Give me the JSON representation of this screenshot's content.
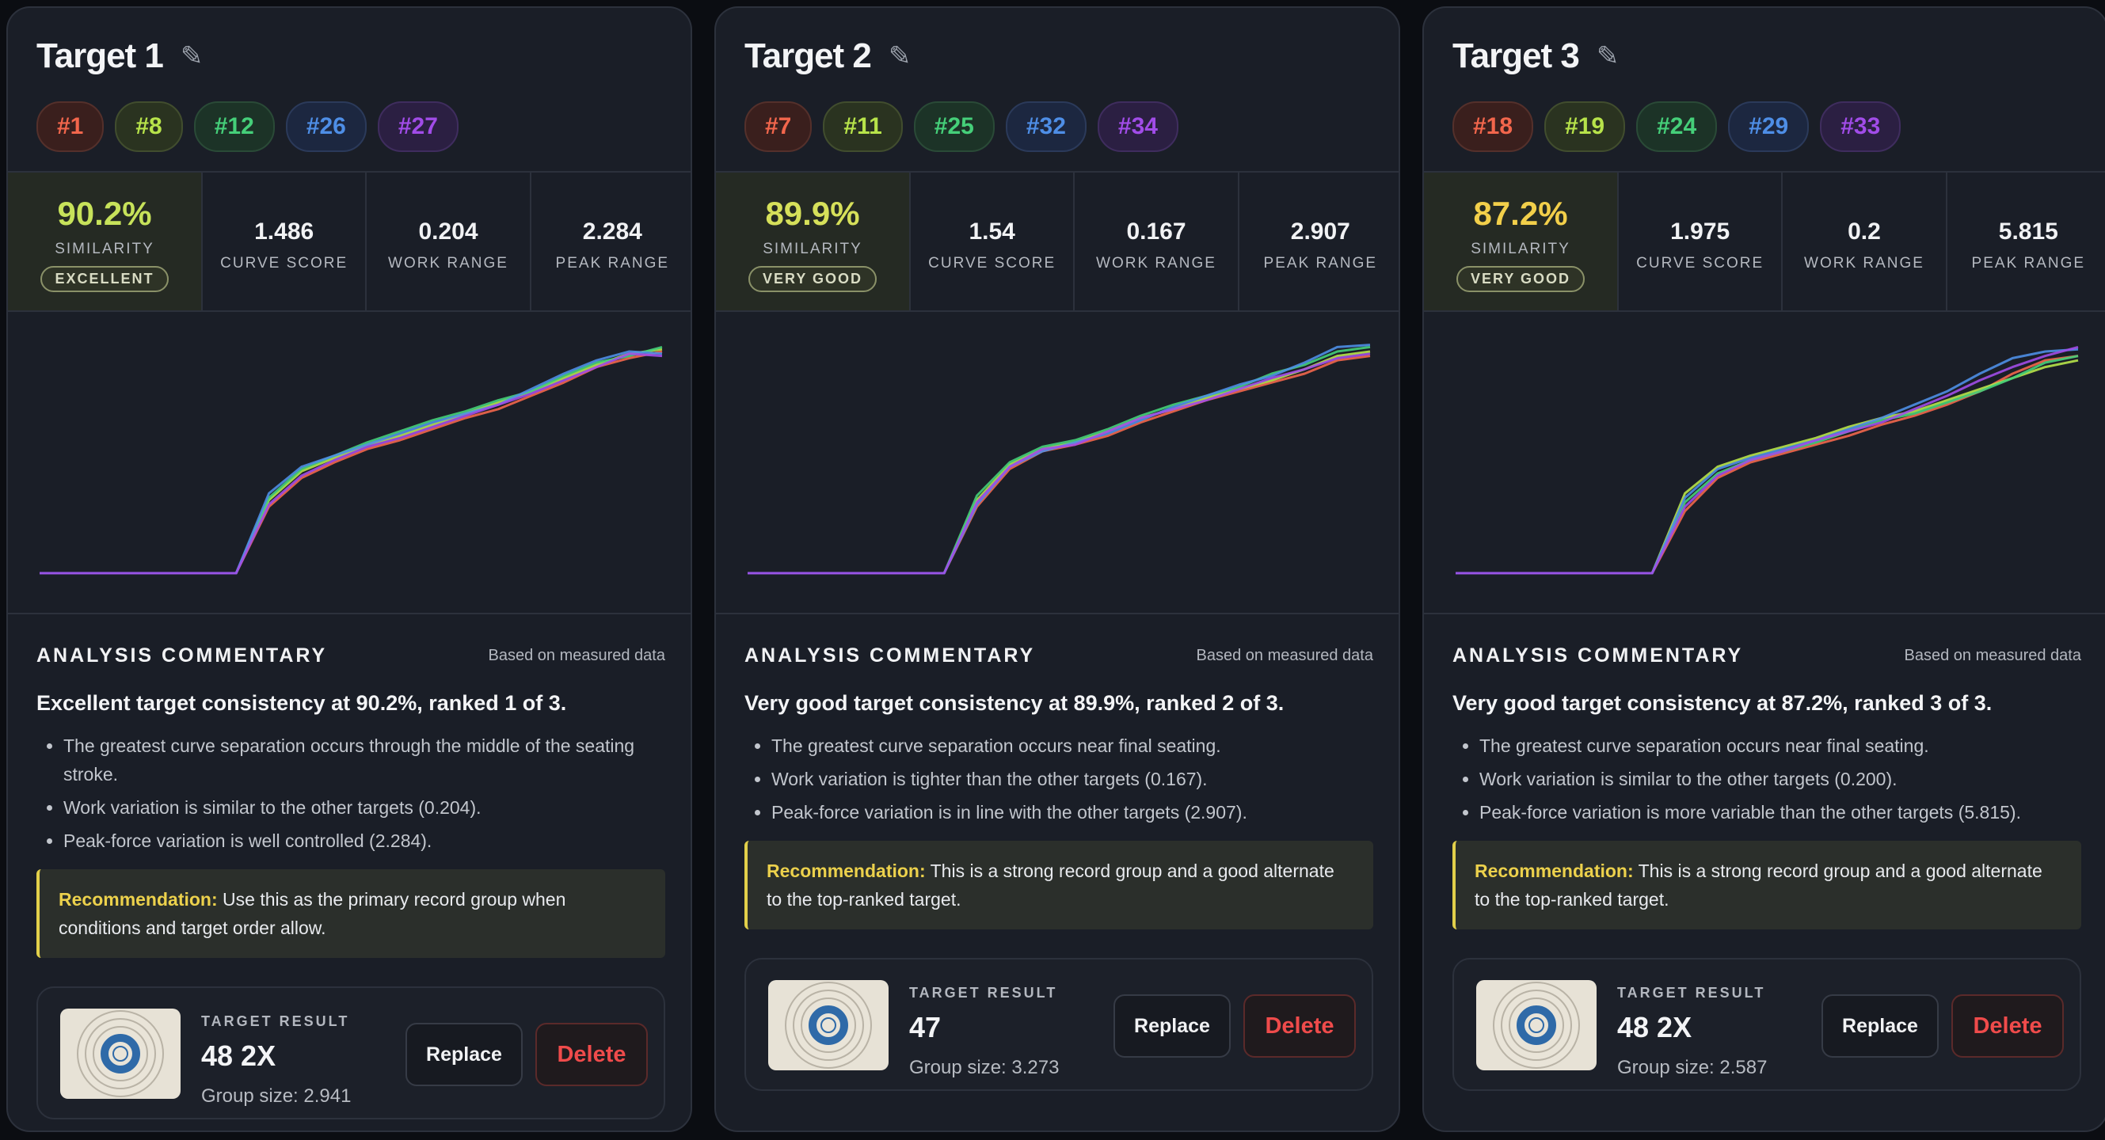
{
  "colors": {
    "series": [
      "#f2664c",
      "#b7e34a",
      "#45cf79",
      "#4e8ee6",
      "#a14ce8"
    ],
    "recommendation_accent": "#ecd14c",
    "delete": "#ef4b4b"
  },
  "labels": {
    "similarity": "SIMILARITY",
    "curve_score": "CURVE SCORE",
    "work_range": "WORK RANGE",
    "peak_range": "PEAK RANGE",
    "commentary_title": "ANALYSIS COMMENTARY",
    "commentary_source": "Based on measured data",
    "recommendation_key": "Recommendation:",
    "target_result": "TARGET RESULT",
    "replace": "Replace",
    "delete": "Delete"
  },
  "icons": {
    "edit": "pencil-icon"
  },
  "targets": [
    {
      "title": "Target 1",
      "tags": [
        "#1",
        "#8",
        "#12",
        "#26",
        "#27"
      ],
      "similarity": "90.2%",
      "rating": "EXCELLENT",
      "curve_score": "1.486",
      "work_range": "0.204",
      "peak_range": "2.284",
      "summary": "Excellent target consistency at 90.2%, ranked 1 of 3.",
      "bullets": [
        "The greatest curve separation occurs through the middle of the seating stroke.",
        "Work variation is similar to the other targets (0.204).",
        "Peak-force variation is well controlled (2.284)."
      ],
      "recommendation": "Use this as the primary record group when conditions and target order allow.",
      "result": "48 2X",
      "group_size": "Group size: 2.941"
    },
    {
      "title": "Target 2",
      "tags": [
        "#7",
        "#11",
        "#25",
        "#32",
        "#34"
      ],
      "similarity": "89.9%",
      "rating": "VERY GOOD",
      "curve_score": "1.54",
      "work_range": "0.167",
      "peak_range": "2.907",
      "summary": "Very good target consistency at 89.9%, ranked 2 of 3.",
      "bullets": [
        "The greatest curve separation occurs near final seating.",
        "Work variation is tighter than the other targets (0.167).",
        "Peak-force variation is in line with the other targets (2.907)."
      ],
      "recommendation": "This is a strong record group and a good alternate to the top-ranked target.",
      "result": "47",
      "group_size": "Group size: 3.273"
    },
    {
      "title": "Target 3",
      "tags": [
        "#18",
        "#19",
        "#24",
        "#29",
        "#33"
      ],
      "similarity": "87.2%",
      "rating": "VERY GOOD",
      "curve_score": "1.975",
      "work_range": "0.2",
      "peak_range": "5.815",
      "summary": "Very good target consistency at 87.2%, ranked 3 of 3.",
      "bullets": [
        "The greatest curve separation occurs near final seating.",
        "Work variation is similar to the other targets (0.200).",
        "Peak-force variation is more variable than the other targets (5.815)."
      ],
      "recommendation": "This is a strong record group and a good alternate to the top-ranked target.",
      "result": "48 2X",
      "group_size": "Group size: 2.587"
    }
  ],
  "chart_data": [
    {
      "type": "line",
      "series": [
        {
          "values": [
            0,
            0,
            0,
            0,
            0,
            0,
            0,
            0.3,
            0.43,
            0.5,
            0.56,
            0.6,
            0.65,
            0.7,
            0.74,
            0.8,
            0.86,
            0.93,
            0.97,
            1.0
          ]
        },
        {
          "values": [
            0,
            0,
            0,
            0,
            0,
            0,
            0,
            0.33,
            0.46,
            0.52,
            0.58,
            0.62,
            0.67,
            0.72,
            0.77,
            0.82,
            0.88,
            0.94,
            0.99,
            1.01
          ]
        },
        {
          "values": [
            0,
            0,
            0,
            0,
            0,
            0,
            0,
            0.34,
            0.47,
            0.53,
            0.59,
            0.64,
            0.69,
            0.73,
            0.78,
            0.82,
            0.89,
            0.95,
            0.98,
            1.02
          ]
        },
        {
          "values": [
            0,
            0,
            0,
            0,
            0,
            0,
            0,
            0.36,
            0.48,
            0.53,
            0.58,
            0.63,
            0.68,
            0.72,
            0.76,
            0.83,
            0.9,
            0.96,
            1.0,
            0.99
          ]
        },
        {
          "values": [
            0,
            0,
            0,
            0,
            0,
            0,
            0,
            0.31,
            0.44,
            0.51,
            0.57,
            0.61,
            0.66,
            0.71,
            0.76,
            0.81,
            0.87,
            0.93,
            0.99,
            0.98
          ]
        }
      ]
    },
    {
      "type": "line",
      "series": [
        {
          "values": [
            0,
            0,
            0,
            0,
            0,
            0,
            0,
            0.3,
            0.47,
            0.55,
            0.58,
            0.62,
            0.68,
            0.73,
            0.78,
            0.82,
            0.86,
            0.9,
            0.96,
            0.98
          ]
        },
        {
          "values": [
            0,
            0,
            0,
            0,
            0,
            0,
            0,
            0.33,
            0.49,
            0.56,
            0.59,
            0.64,
            0.7,
            0.74,
            0.79,
            0.83,
            0.87,
            0.92,
            0.98,
            1.0
          ]
        },
        {
          "values": [
            0,
            0,
            0,
            0,
            0,
            0,
            0,
            0.35,
            0.5,
            0.57,
            0.6,
            0.65,
            0.71,
            0.76,
            0.8,
            0.84,
            0.9,
            0.94,
            1.0,
            1.02
          ]
        },
        {
          "values": [
            0,
            0,
            0,
            0,
            0,
            0,
            0,
            0.31,
            0.48,
            0.55,
            0.59,
            0.63,
            0.69,
            0.75,
            0.8,
            0.85,
            0.89,
            0.95,
            1.02,
            1.03
          ]
        },
        {
          "values": [
            0,
            0,
            0,
            0,
            0,
            0,
            0,
            0.32,
            0.48,
            0.56,
            0.58,
            0.64,
            0.7,
            0.74,
            0.78,
            0.83,
            0.88,
            0.92,
            0.97,
            0.99
          ]
        }
      ]
    },
    {
      "type": "line",
      "series": [
        {
          "values": [
            0,
            0,
            0,
            0,
            0,
            0,
            0,
            0.28,
            0.43,
            0.5,
            0.54,
            0.58,
            0.62,
            0.67,
            0.71,
            0.76,
            0.82,
            0.9,
            0.96,
            0.98
          ]
        },
        {
          "values": [
            0,
            0,
            0,
            0,
            0,
            0,
            0,
            0.36,
            0.48,
            0.53,
            0.57,
            0.61,
            0.66,
            0.7,
            0.73,
            0.78,
            0.83,
            0.88,
            0.93,
            0.96
          ]
        },
        {
          "values": [
            0,
            0,
            0,
            0,
            0,
            0,
            0,
            0.32,
            0.45,
            0.51,
            0.55,
            0.59,
            0.64,
            0.69,
            0.72,
            0.77,
            0.82,
            0.88,
            0.95,
            0.98
          ]
        },
        {
          "values": [
            0,
            0,
            0,
            0,
            0,
            0,
            0,
            0.34,
            0.47,
            0.52,
            0.56,
            0.6,
            0.65,
            0.7,
            0.76,
            0.82,
            0.9,
            0.97,
            1.0,
            1.01
          ]
        },
        {
          "values": [
            0,
            0,
            0,
            0,
            0,
            0,
            0,
            0.3,
            0.44,
            0.51,
            0.55,
            0.6,
            0.64,
            0.68,
            0.74,
            0.8,
            0.87,
            0.93,
            0.98,
            1.02
          ]
        }
      ]
    }
  ]
}
